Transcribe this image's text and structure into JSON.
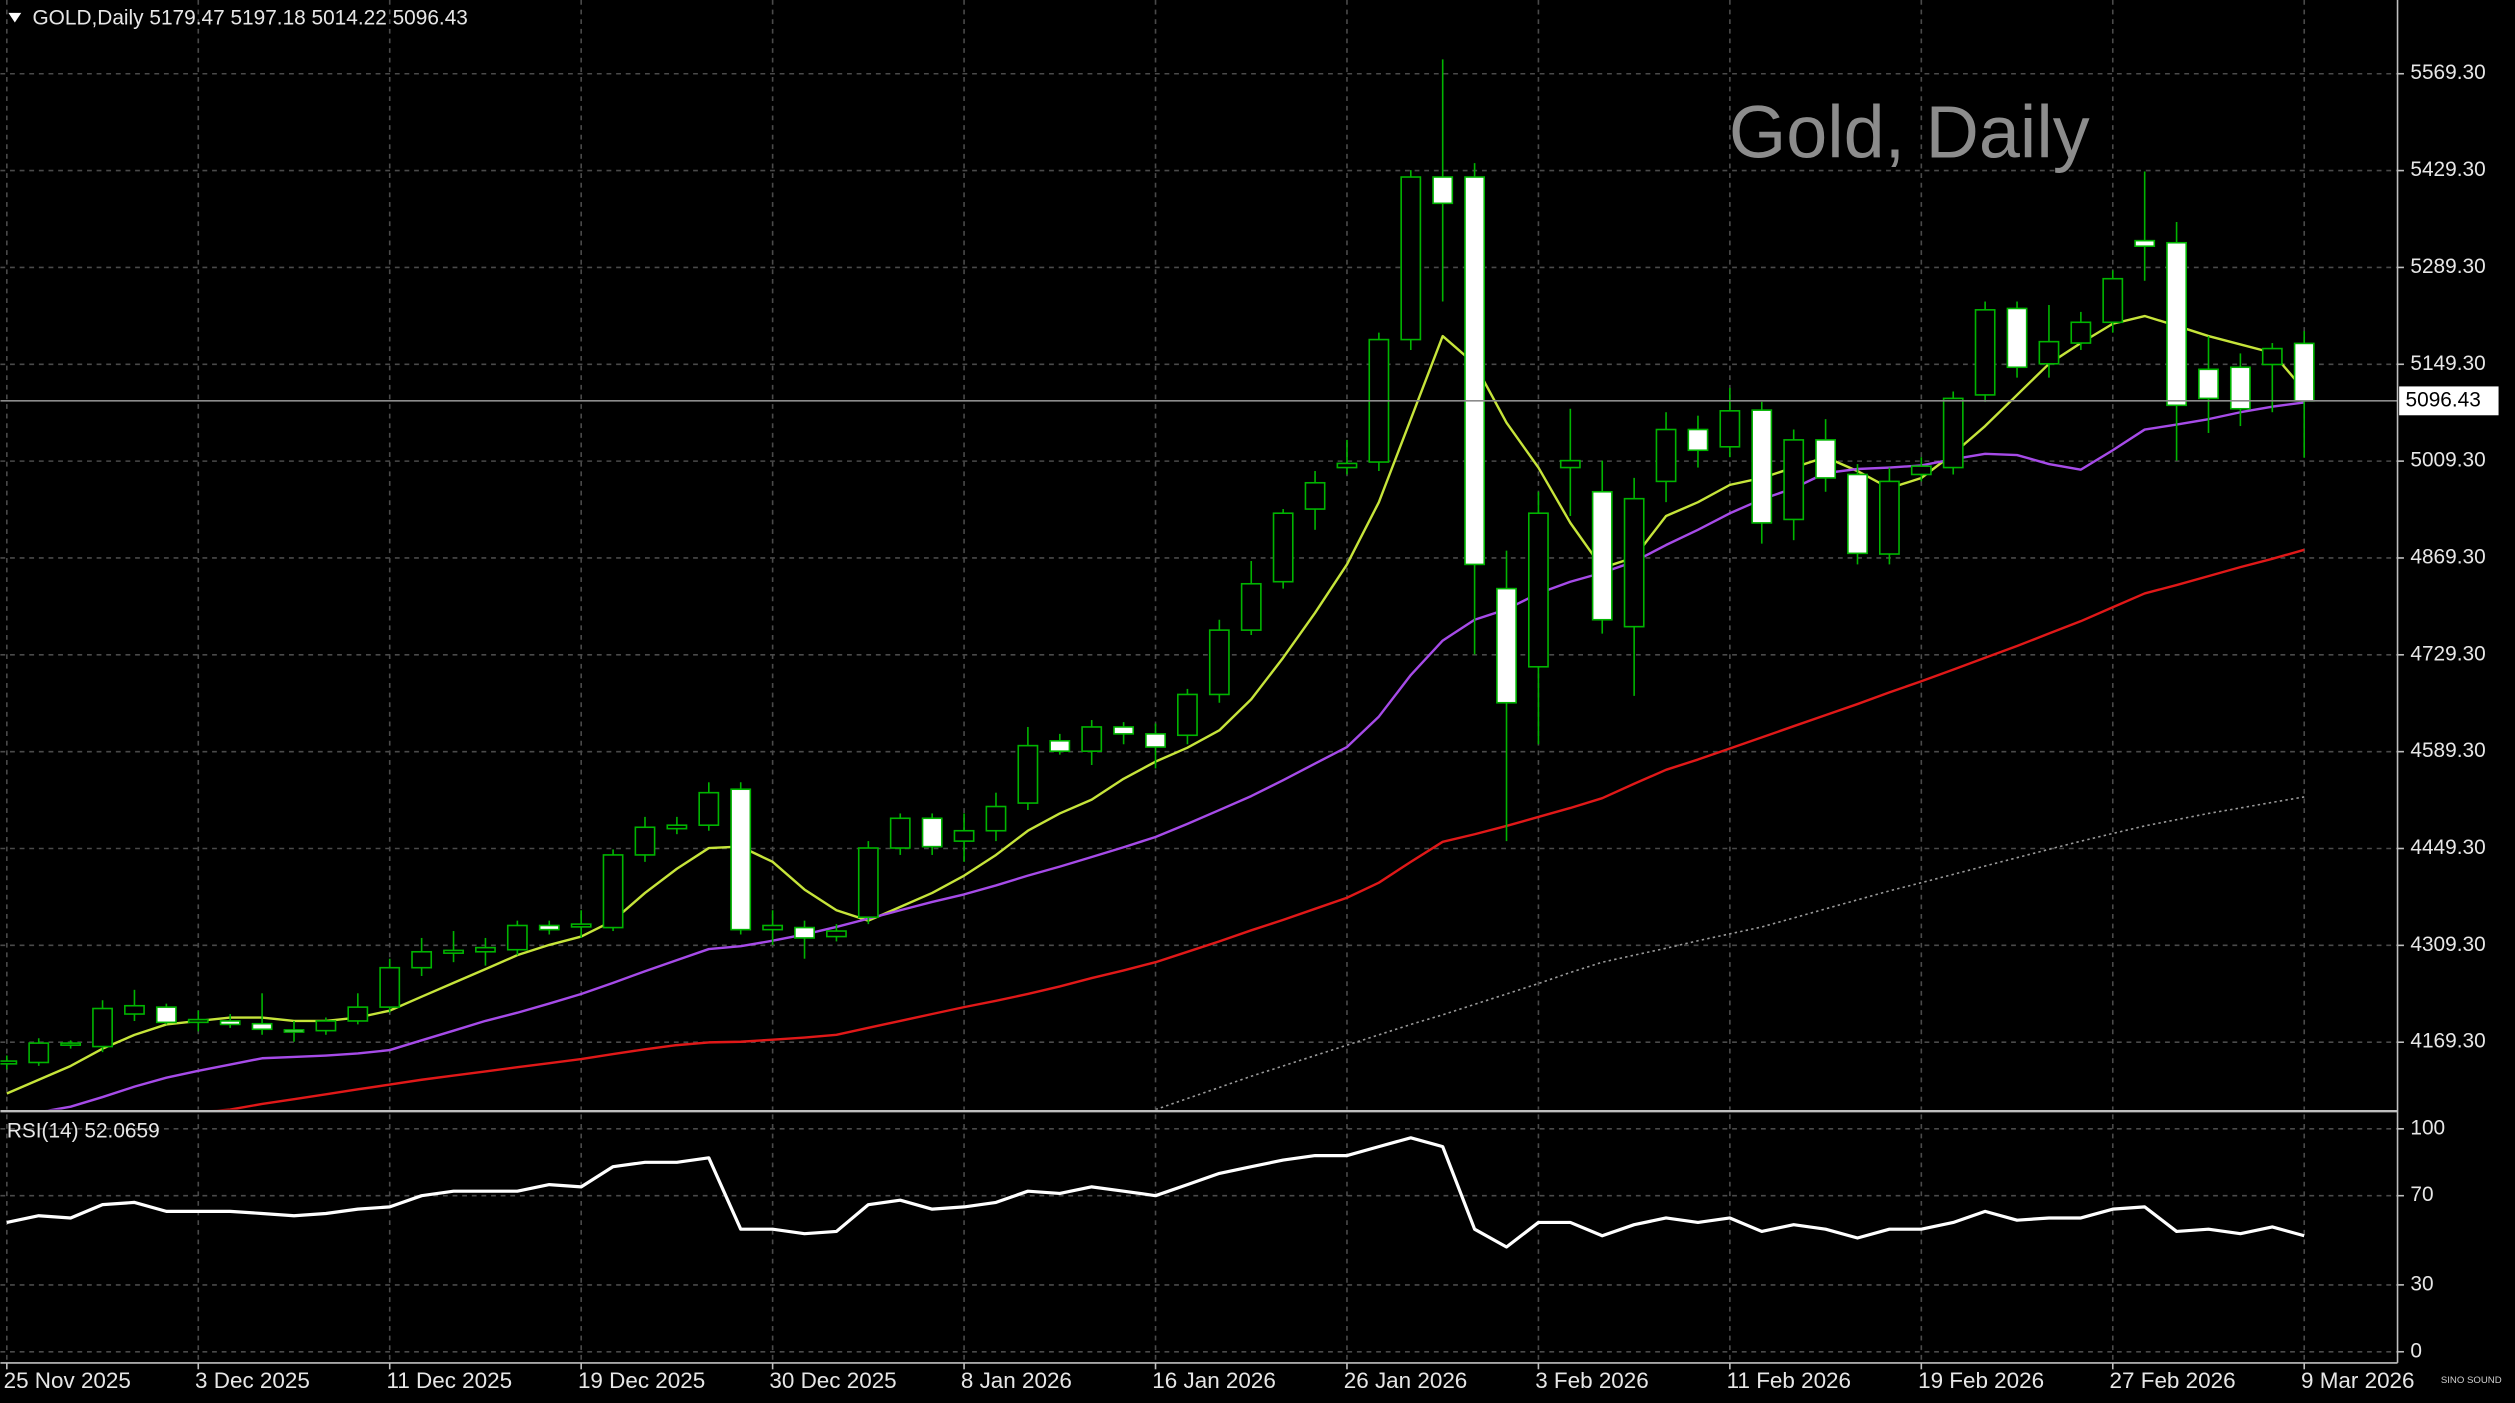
{
  "chart_data": [
    {
      "type": "candlestick",
      "title": "Gold, Daily",
      "header": "GOLD,Daily  5179.47 5197.18 5014.22 5096.43",
      "watermark": "SINO SOUND",
      "categories": [
        "25 Nov 2025",
        null,
        null,
        null,
        null,
        null,
        "3 Dec 2025",
        null,
        null,
        null,
        null,
        null,
        "11 Dec 2025",
        null,
        null,
        null,
        null,
        null,
        "19 Dec 2025",
        null,
        null,
        null,
        null,
        null,
        "30 Dec 2025",
        null,
        null,
        null,
        null,
        null,
        "8 Jan 2026",
        null,
        null,
        null,
        null,
        null,
        "16 Jan 2026",
        null,
        null,
        null,
        null,
        null,
        "26 Jan 2026",
        null,
        null,
        null,
        null,
        null,
        "3 Feb 2026",
        null,
        null,
        null,
        null,
        null,
        "11 Feb 2026",
        null,
        null,
        null,
        null,
        null,
        "19 Feb 2026",
        null,
        null,
        null,
        null,
        null,
        "27 Feb 2026",
        null,
        null,
        null,
        null,
        null,
        "9 Mar 2026"
      ],
      "open": [
        4138,
        4140,
        4165,
        4163,
        4210,
        4220,
        4198,
        4200,
        4196,
        4187,
        4186,
        4200,
        4220,
        4277,
        4298,
        4300,
        4303,
        4338,
        4336,
        4335,
        4440,
        4478,
        4483,
        4535,
        4332,
        4335,
        4322,
        4350,
        4450,
        4493,
        4460,
        4475,
        4515,
        4605,
        4590,
        4625,
        4615,
        4613,
        4672,
        4765,
        4835,
        4940,
        5000,
        5008,
        5185,
        5420,
        5420,
        4825,
        4712,
        5000,
        4965,
        4770,
        4980,
        5055,
        5030,
        5083,
        4925,
        5040,
        4990,
        4875,
        4990,
        5000,
        5105,
        5230,
        5150,
        5180,
        5210,
        5328,
        5325,
        5142,
        5145,
        5149,
        5179.47
      ],
      "high": [
        4150,
        4175,
        4172,
        4230,
        4245,
        4225,
        4215,
        4210,
        4240,
        4200,
        4205,
        4240,
        4290,
        4320,
        4330,
        4320,
        4345,
        4345,
        4360,
        4448,
        4495,
        4495,
        4545,
        4545,
        4360,
        4345,
        4340,
        4460,
        4500,
        4500,
        4500,
        4530,
        4625,
        4615,
        4635,
        4632,
        4630,
        4680,
        4780,
        4865,
        4940,
        4995,
        5040,
        5195,
        5430,
        5590,
        5440,
        4880,
        4965,
        5085,
        5010,
        4985,
        5080,
        5075,
        5115,
        5095,
        5055,
        5070,
        5005,
        5000,
        5015,
        5110,
        5240,
        5240,
        5235,
        5225,
        5285,
        5428,
        5355,
        5190,
        5165,
        5180,
        5197.18
      ],
      "low": [
        4130,
        4135,
        4160,
        4155,
        4200,
        4195,
        4185,
        4190,
        4180,
        4170,
        4180,
        4195,
        4212,
        4265,
        4285,
        4280,
        4295,
        4325,
        4320,
        4330,
        4430,
        4470,
        4475,
        4325,
        4310,
        4290,
        4315,
        4340,
        4440,
        4440,
        4430,
        4460,
        4505,
        4585,
        4570,
        4600,
        4565,
        4600,
        4660,
        4758,
        4825,
        4910,
        4990,
        4995,
        5170,
        5240,
        4730,
        4460,
        4600,
        4930,
        4760,
        4670,
        4950,
        5000,
        5015,
        4890,
        4895,
        4965,
        4860,
        4860,
        4980,
        4990,
        5095,
        5130,
        5130,
        5170,
        5195,
        5270,
        5010,
        5050,
        5060,
        5080,
        5014.22
      ],
      "close": [
        4142,
        4168,
        4168,
        4218,
        4222,
        4198,
        4202,
        4195,
        4188,
        4184,
        4200,
        4220,
        4277,
        4300,
        4302,
        4306,
        4338,
        4332,
        4340,
        4440,
        4480,
        4483,
        4530,
        4332,
        4338,
        4320,
        4330,
        4450,
        4493,
        4452,
        4475,
        4510,
        4598,
        4590,
        4625,
        4615,
        4596,
        4672,
        4765,
        4832,
        4934,
        4978,
        5006,
        5185,
        5420,
        5382,
        4860,
        4660,
        4934,
        5010,
        4780,
        4955,
        5055,
        5025,
        5082,
        4920,
        5040,
        4985,
        4876,
        4980,
        5002,
        5100,
        5228,
        5145,
        5182,
        5210,
        5273,
        5320,
        5090,
        5100,
        5085,
        5172,
        5096.43
      ],
      "bull_color": "#00b400",
      "bear_color": "#ffffff",
      "series": [
        {
          "color": "#c6e43a",
          "values": [
            4095,
            4115,
            4135,
            4160,
            4180,
            4195,
            4200,
            4205,
            4205,
            4200,
            4200,
            4205,
            4215,
            4235,
            4255,
            4275,
            4295,
            4310,
            4322,
            4345,
            4385,
            4420,
            4450,
            4452,
            4430,
            4390,
            4360,
            4345,
            4365,
            4385,
            4410,
            4440,
            4475,
            4500,
            4520,
            4550,
            4575,
            4595,
            4620,
            4665,
            4725,
            4790,
            4860,
            4950,
            5070,
            5190,
            5150,
            5065,
            5000,
            4920,
            4855,
            4870,
            4930,
            4950,
            4975,
            4985,
            5000,
            5015,
            4995,
            4970,
            4985,
            5020,
            5060,
            5105,
            5150,
            5180,
            5208,
            5219,
            5205,
            5190,
            5178,
            5166,
            5112
          ]
        },
        {
          "color": "#a64be8",
          "values": [
            4060,
            4068,
            4076,
            4090,
            4105,
            4118,
            4128,
            4137,
            4146,
            4148,
            4150,
            4153,
            4158,
            4172,
            4186,
            4200,
            4212,
            4225,
            4239,
            4255,
            4272,
            4288,
            4304,
            4308,
            4316,
            4325,
            4336,
            4348,
            4360,
            4372,
            4383,
            4396,
            4410,
            4423,
            4437,
            4451,
            4466,
            4485,
            4505,
            4525,
            4548,
            4572,
            4596,
            4640,
            4700,
            4750,
            4780,
            4795,
            4818,
            4835,
            4848,
            4864,
            4888,
            4910,
            4934,
            4954,
            4970,
            4992,
            4998,
            5000,
            5003,
            5012,
            5020,
            5018,
            5005,
            4997,
            5025,
            5055,
            5062,
            5070,
            5080,
            5088,
            5094
          ]
        },
        {
          "color": "#e01818",
          "values": [
            4040,
            4045,
            4050,
            4055,
            4060,
            4064,
            4068,
            4072,
            4080,
            4087,
            4094,
            4101,
            4108,
            4115,
            4121,
            4127,
            4133,
            4139,
            4145,
            4152,
            4159,
            4165,
            4169,
            4170,
            4173,
            4176,
            4180,
            4190,
            4200,
            4210,
            4220,
            4229,
            4239,
            4250,
            4262,
            4273,
            4285,
            4300,
            4315,
            4331,
            4346,
            4362,
            4378,
            4400,
            4430,
            4459,
            4470,
            4482,
            4495,
            4508,
            4522,
            4543,
            4563,
            4578,
            4594,
            4610,
            4626,
            4642,
            4658,
            4675,
            4691,
            4708,
            4725,
            4742,
            4760,
            4778,
            4798,
            4818,
            4830,
            4843,
            4856,
            4868,
            4881
          ]
        },
        {
          "color": "#9a9a9a",
          "style": "dotted",
          "values": [
            null,
            null,
            null,
            null,
            null,
            null,
            null,
            null,
            null,
            null,
            null,
            null,
            null,
            null,
            null,
            null,
            null,
            null,
            null,
            null,
            null,
            null,
            null,
            null,
            null,
            null,
            null,
            null,
            null,
            null,
            null,
            null,
            null,
            null,
            null,
            null,
            4072,
            4088,
            4104,
            4120,
            4135,
            4150,
            4165,
            4180,
            4195,
            4209,
            4224,
            4239,
            4254,
            4270,
            4285,
            4295,
            4305,
            4316,
            4326,
            4336,
            4349,
            4362,
            4375,
            4388,
            4400,
            4412,
            4424,
            4436,
            4448,
            4460,
            4471,
            4482,
            4491,
            4500,
            4508,
            4516,
            4524
          ]
        }
      ],
      "price_line": {
        "value": 5096.43,
        "label": "5096.43"
      },
      "ylim": [
        4071.9,
        5675.9
      ],
      "yticks": [
        {
          "value": 4169.3,
          "label": "4169.30"
        },
        {
          "value": 4309.3,
          "label": "4309.30"
        },
        {
          "value": 4449.3,
          "label": "4449.30"
        },
        {
          "value": 4589.3,
          "label": "4589.30"
        },
        {
          "value": 4729.3,
          "label": "4729.30"
        },
        {
          "value": 4869.3,
          "label": "4869.30"
        },
        {
          "value": 5009.3,
          "label": "5009.30"
        },
        {
          "value": 5149.3,
          "label": "5149.30"
        },
        {
          "value": 5289.3,
          "label": "5289.30"
        },
        {
          "value": 5429.3,
          "label": "5429.30"
        },
        {
          "value": 5569.3,
          "label": "5569.30"
        }
      ],
      "grid": true
    },
    {
      "type": "line",
      "title": "RSI(14) 52.0659",
      "color": "#ffffff",
      "values": [
        58,
        61,
        60,
        66,
        67,
        63,
        63,
        63,
        62,
        61,
        62,
        64,
        65,
        70,
        72,
        72,
        72,
        75,
        74,
        83,
        85,
        85,
        87,
        55,
        55,
        53,
        54,
        66,
        68,
        64,
        65,
        67,
        72,
        71,
        74,
        72,
        70,
        75,
        80,
        83,
        86,
        88,
        88,
        92,
        96,
        92,
        55,
        47,
        58,
        58,
        52,
        57,
        60,
        58,
        60,
        54,
        57,
        55,
        51,
        55,
        55,
        58,
        63,
        59,
        60,
        60,
        64,
        65,
        54,
        55,
        53,
        56,
        52.0659
      ],
      "ylim": [
        -5,
        107.2
      ],
      "yticks": [
        0,
        30,
        70,
        100
      ],
      "grid": true
    }
  ]
}
